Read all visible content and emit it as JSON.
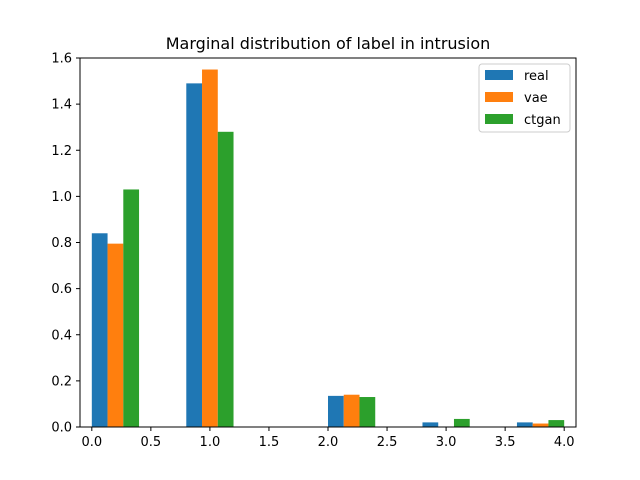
{
  "chart_data": {
    "type": "bar",
    "title": "Marginal distribution of label in intrusion",
    "xlabel": "",
    "ylabel": "",
    "xlim": [
      -0.1,
      4.1
    ],
    "ylim": [
      0,
      1.6
    ],
    "xticks": [
      0.0,
      0.5,
      1.0,
      1.5,
      2.0,
      2.5,
      3.0,
      3.5,
      4.0
    ],
    "xtick_labels": [
      "0.0",
      "0.5",
      "1.0",
      "1.5",
      "2.0",
      "2.5",
      "3.0",
      "3.5",
      "4.0"
    ],
    "yticks": [
      0.0,
      0.2,
      0.4,
      0.6,
      0.8,
      1.0,
      1.2,
      1.4,
      1.6
    ],
    "ytick_labels": [
      "0.0",
      "0.2",
      "0.4",
      "0.6",
      "0.8",
      "1.0",
      "1.2",
      "1.4",
      "1.6"
    ],
    "grid": false,
    "legend_position": "top-right",
    "bins": [
      [
        0.0,
        0.4
      ],
      [
        0.8,
        1.2
      ],
      [
        2.0,
        2.4
      ],
      [
        2.8,
        3.2
      ],
      [
        3.6,
        4.0
      ]
    ],
    "series": [
      {
        "name": "real",
        "color": "#1f77b4",
        "values": [
          0.84,
          1.49,
          0.135,
          0.02,
          0.02
        ]
      },
      {
        "name": "vae",
        "color": "#ff7f0e",
        "values": [
          0.795,
          1.55,
          0.14,
          0.0,
          0.015
        ]
      },
      {
        "name": "ctgan",
        "color": "#2ca02c",
        "values": [
          1.03,
          1.28,
          0.13,
          0.035,
          0.03
        ]
      }
    ]
  }
}
